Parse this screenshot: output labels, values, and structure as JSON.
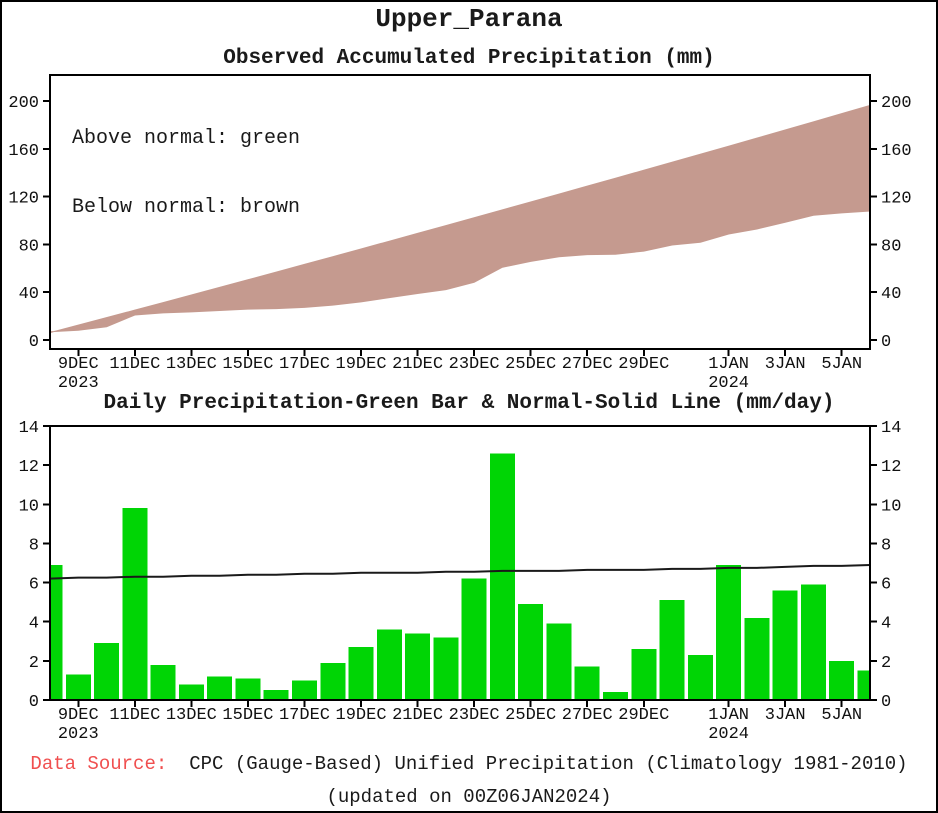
{
  "figure_title": "Upper_Parana",
  "colors": {
    "above_normal_green": "#00d505",
    "below_normal_brown": "#c59a8f",
    "bar_green": "#00d505",
    "normal_line": "#1a1a1a",
    "frame_black": "#000000",
    "source_label_red": "#f04f4f"
  },
  "x_axis": {
    "n_days": 30,
    "dates": [
      "8DEC2023",
      "9DEC2023",
      "10DEC2023",
      "11DEC2023",
      "12DEC2023",
      "13DEC2023",
      "14DEC2023",
      "15DEC2023",
      "16DEC2023",
      "17DEC2023",
      "18DEC2023",
      "19DEC2023",
      "20DEC2023",
      "21DEC2023",
      "22DEC2023",
      "23DEC2023",
      "24DEC2023",
      "25DEC2023",
      "26DEC2023",
      "27DEC2023",
      "28DEC2023",
      "29DEC2023",
      "30DEC2023",
      "31DEC2023",
      "1JAN2024",
      "2JAN2024",
      "3JAN2024",
      "4JAN2024",
      "5JAN2024",
      "6JAN2024"
    ],
    "tick_labels": [
      "9DEC",
      "11DEC",
      "13DEC",
      "15DEC",
      "17DEC",
      "19DEC",
      "21DEC",
      "23DEC",
      "25DEC",
      "27DEC",
      "29DEC",
      "1JAN",
      "3JAN",
      "5JAN"
    ],
    "tick_day_index": [
      1,
      3,
      5,
      7,
      9,
      11,
      13,
      15,
      17,
      19,
      21,
      24,
      26,
      28
    ],
    "year_labels": [
      {
        "under_tick": 0,
        "text": "2023"
      },
      {
        "under_tick": 11,
        "text": "2024"
      }
    ]
  },
  "chart_data": [
    {
      "type": "area",
      "title": "Observed Accumulated Precipitation (mm)",
      "legend": [
        "Above normal: green",
        "Below normal: brown"
      ],
      "xlabel": "",
      "ylabel": "",
      "y_ticks": [
        0,
        40,
        80,
        120,
        160,
        200
      ],
      "ylim": [
        -8,
        222
      ],
      "grid": false,
      "legend_position": "top-left-inside",
      "fill_rule": "band between curves shaded brown where observed below normal",
      "series": [
        {
          "name": "Normal accumulated (upper bound)",
          "values": [
            6.2,
            12.45,
            18.7,
            25.0,
            31.3,
            37.65,
            44.0,
            50.4,
            56.8,
            63.25,
            69.7,
            76.2,
            82.7,
            89.2,
            95.75,
            102.3,
            108.9,
            115.5,
            122.1,
            128.75,
            135.4,
            142.05,
            148.75,
            155.45,
            162.2,
            168.95,
            175.75,
            182.6,
            189.45,
            196.35
          ]
        },
        {
          "name": "Observed accumulated (lower bound)",
          "values": [
            6.9,
            8.2,
            11.1,
            20.9,
            22.7,
            23.5,
            24.7,
            25.8,
            26.3,
            27.3,
            29.2,
            31.9,
            35.5,
            38.9,
            42.1,
            48.3,
            60.9,
            65.8,
            69.7,
            71.4,
            71.8,
            74.4,
            79.5,
            81.8,
            88.7,
            92.9,
            98.5,
            104.4,
            106.4,
            107.9
          ]
        }
      ]
    },
    {
      "type": "bar",
      "title": "Daily Precipitation-Green Bar & Normal-Solid Line (mm/day)",
      "xlabel": "",
      "ylabel": "",
      "y_ticks": [
        0,
        2,
        4,
        6,
        8,
        10,
        12,
        14
      ],
      "ylim": [
        0,
        14
      ],
      "grid": false,
      "bars": {
        "name": "Daily observed precipitation",
        "values": [
          6.9,
          1.3,
          2.9,
          9.8,
          1.8,
          0.8,
          1.2,
          1.1,
          0.5,
          1.0,
          1.9,
          2.7,
          3.6,
          3.4,
          3.2,
          6.2,
          12.6,
          4.9,
          3.9,
          1.7,
          0.4,
          2.6,
          5.1,
          2.3,
          6.9,
          4.2,
          5.6,
          5.9,
          2.0,
          1.5
        ]
      },
      "line": {
        "name": "Daily climatological normal",
        "values": [
          6.2,
          6.25,
          6.25,
          6.3,
          6.3,
          6.35,
          6.35,
          6.4,
          6.4,
          6.45,
          6.45,
          6.5,
          6.5,
          6.5,
          6.55,
          6.55,
          6.6,
          6.6,
          6.6,
          6.65,
          6.65,
          6.65,
          6.7,
          6.7,
          6.75,
          6.75,
          6.8,
          6.85,
          6.85,
          6.9
        ]
      }
    }
  ],
  "footer": {
    "source_label": "Data Source:",
    "source_text": "CPC (Gauge-Based) Unified Precipitation (Climatology 1981-2010)",
    "updated_text": "(updated on 00Z06JAN2024)"
  }
}
